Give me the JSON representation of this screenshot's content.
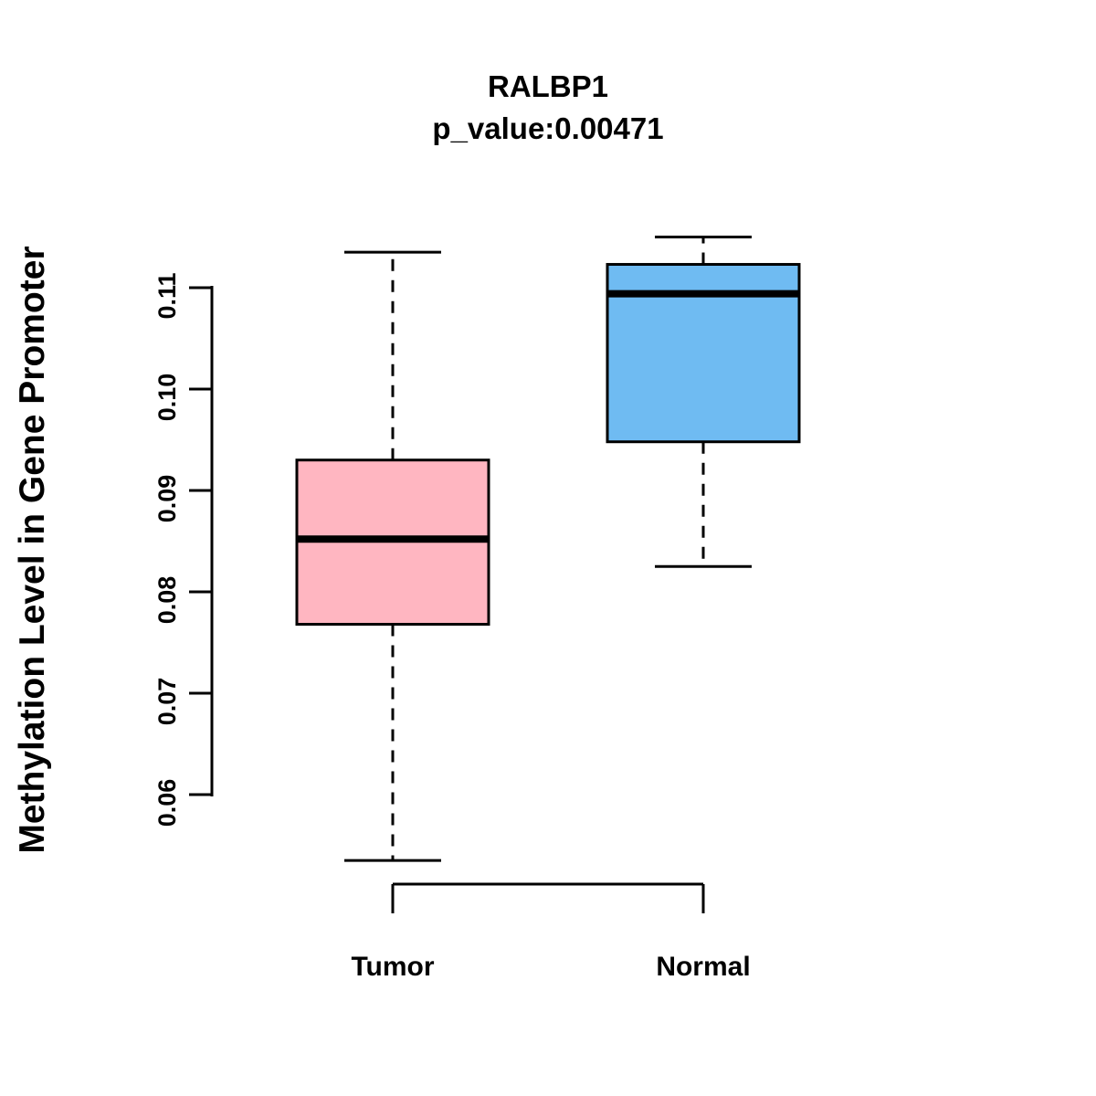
{
  "chart_data": {
    "type": "boxplot",
    "title": "RALBP1",
    "subtitle": "p_value:0.00471",
    "ylabel": "Methylation Level in Gene Promoter",
    "xlabel": "",
    "ylim": [
      0.052,
      0.117
    ],
    "yticks": [
      {
        "label": "0.06",
        "value": 0.06
      },
      {
        "label": "0.07",
        "value": 0.07
      },
      {
        "label": "0.08",
        "value": 0.08
      },
      {
        "label": "0.09",
        "value": 0.09
      },
      {
        "label": "0.10",
        "value": 0.1
      },
      {
        "label": "0.11",
        "value": 0.11
      }
    ],
    "groups": [
      {
        "label": "Tumor",
        "color": "#FFB6C1",
        "whisker_low": 0.0535,
        "q1": 0.0768,
        "median": 0.0852,
        "q3": 0.093,
        "whisker_high": 0.1135
      },
      {
        "label": "Normal",
        "color": "#6FBBF2",
        "whisker_low": 0.0825,
        "q1": 0.0948,
        "median": 0.1094,
        "q3": 0.1123,
        "whisker_high": 0.115
      }
    ],
    "stroke_color": "#000000",
    "background": "#ffffff"
  }
}
